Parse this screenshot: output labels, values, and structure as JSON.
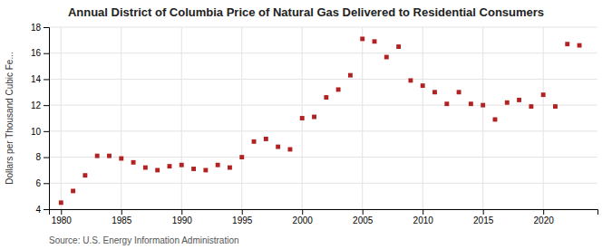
{
  "chart_data": {
    "type": "scatter",
    "title": "Annual District of Columbia Price of Natural Gas Delivered to Residential Consumers",
    "ylabel": "Dollars per Thousand Cubic Fe...",
    "annotations": [
      "Source: U.S. Energy Information Administration"
    ],
    "x": [
      1980,
      1981,
      1982,
      1983,
      1984,
      1985,
      1986,
      1987,
      1988,
      1989,
      1990,
      1991,
      1992,
      1993,
      1994,
      1995,
      1996,
      1997,
      1998,
      1999,
      2000,
      2001,
      2002,
      2003,
      2004,
      2005,
      2006,
      2007,
      2008,
      2009,
      2010,
      2011,
      2012,
      2013,
      2014,
      2015,
      2016,
      2017,
      2018,
      2019,
      2020,
      2021,
      2022,
      2023
    ],
    "values": [
      4.5,
      5.4,
      6.6,
      8.1,
      8.1,
      7.9,
      7.6,
      7.2,
      7.0,
      7.3,
      7.4,
      7.1,
      7.0,
      7.4,
      7.2,
      8.0,
      9.2,
      9.4,
      8.8,
      8.6,
      11.0,
      11.1,
      12.6,
      13.2,
      14.3,
      17.1,
      16.9,
      15.7,
      16.5,
      13.9,
      13.5,
      13.0,
      12.1,
      13.0,
      12.1,
      12.0,
      10.9,
      12.2,
      12.4,
      11.9,
      12.8,
      11.9,
      16.7,
      16.6
    ],
    "color": "#b22222",
    "marker": "square",
    "xlim": [
      1979,
      2024.5
    ],
    "ylim": [
      4,
      18
    ],
    "xticks": [
      1980,
      1985,
      1990,
      1995,
      2000,
      2005,
      2010,
      2015,
      2020
    ],
    "yticks": [
      4,
      6,
      8,
      10,
      12,
      14,
      16,
      18
    ],
    "grid": true
  }
}
